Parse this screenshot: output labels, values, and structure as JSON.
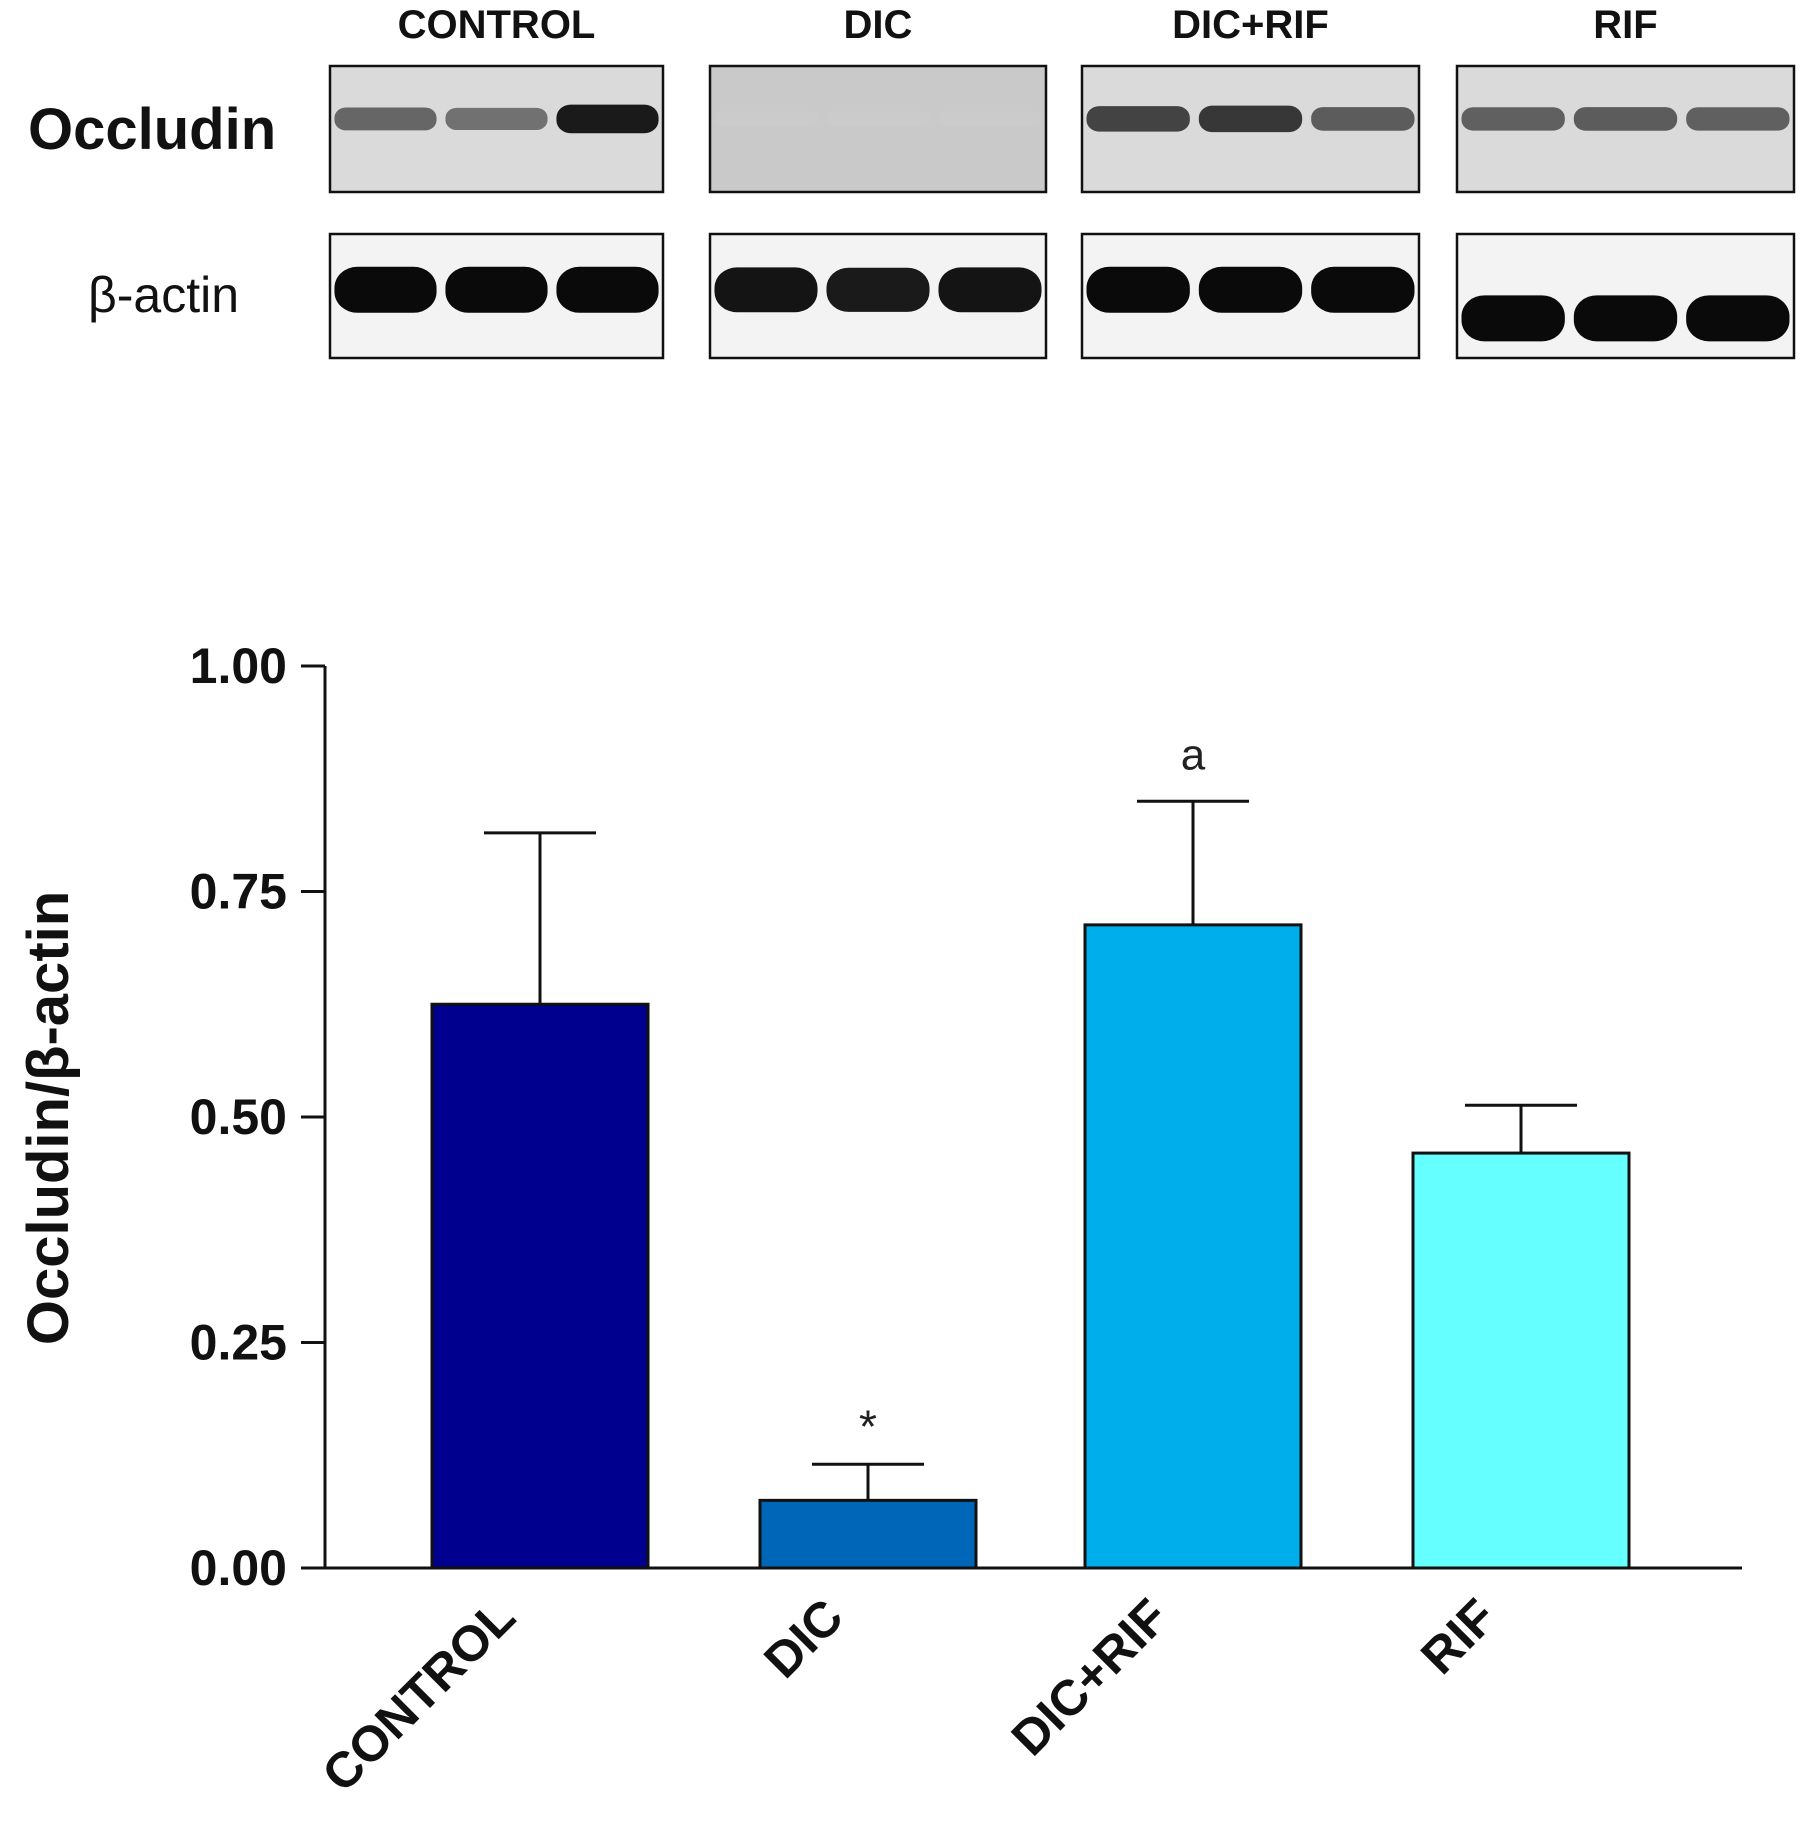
{
  "blot": {
    "groups": [
      "CONTROL",
      "DIC",
      "DIC+RIF",
      "RIF"
    ],
    "rows": [
      {
        "label": "Occludin",
        "band_intensity": [
          [
            0.55,
            0.5,
            0.92
          ],
          [
            0.06,
            0.06,
            0.06
          ],
          [
            0.72,
            0.78,
            0.6
          ],
          [
            0.58,
            0.6,
            0.58
          ]
        ]
      },
      {
        "label": "β-actin",
        "band_intensity": [
          [
            1.0,
            1.0,
            1.0
          ],
          [
            0.95,
            0.92,
            0.95
          ],
          [
            1.0,
            1.0,
            1.0
          ],
          [
            1.0,
            1.0,
            1.0
          ]
        ]
      }
    ]
  },
  "chart_data": {
    "type": "bar",
    "categories": [
      "CONTROL",
      "DIC",
      "DIC+RIF",
      "RIF"
    ],
    "values": [
      0.625,
      0.075,
      0.713,
      0.46
    ],
    "errors": [
      0.19,
      0.04,
      0.137,
      0.053
    ],
    "annotations": [
      "",
      "*",
      "a",
      ""
    ],
    "colors": [
      "#00008E",
      "#0066B8",
      "#00AEEC",
      "#66FFFF"
    ],
    "title": "",
    "xlabel": "",
    "ylabel": "Occludin/β-actin",
    "ylim": [
      0,
      1
    ],
    "yticks": [
      "0.00",
      "0.25",
      "0.50",
      "0.75",
      "1.00"
    ],
    "ytick_values": [
      0,
      0.25,
      0.5,
      0.75,
      1.0
    ],
    "grid": false,
    "legend": "none"
  }
}
